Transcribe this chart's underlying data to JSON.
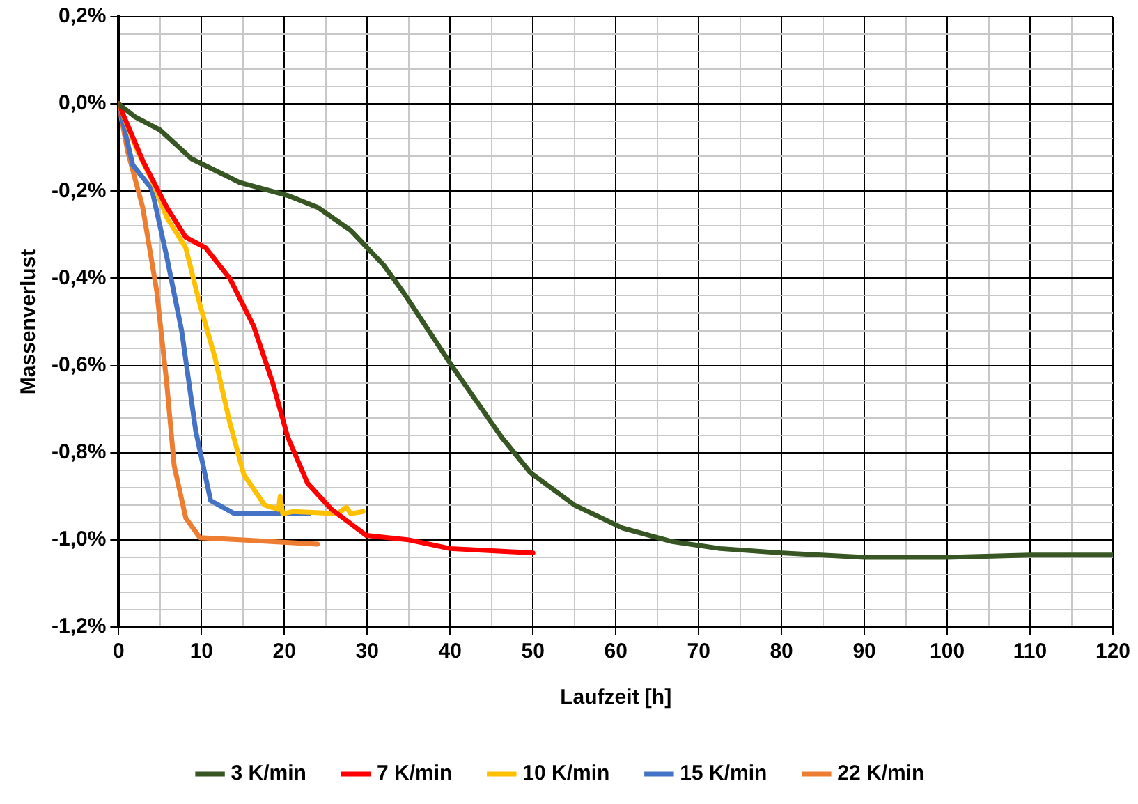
{
  "chart_data": {
    "type": "line",
    "xlabel": "Laufzeit [h]",
    "ylabel": "Massenverlust",
    "xlim": [
      0,
      120
    ],
    "ylim": [
      -1.2,
      0.2
    ],
    "xticks": [
      0,
      {
        "value": 5,
        "label": null
      },
      10,
      {
        "value": 15,
        "label": null
      },
      20,
      {
        "value": 25,
        "label": null
      },
      30,
      {
        "value": 35,
        "label": null
      },
      40,
      {
        "value": 45,
        "label": null
      },
      50,
      {
        "value": 55,
        "label": null
      },
      60,
      {
        "value": 65,
        "label": null
      },
      70,
      {
        "value": 75,
        "label": null
      },
      80,
      {
        "value": 85,
        "label": null
      },
      90,
      {
        "value": 95,
        "label": null
      },
      100,
      {
        "value": 105,
        "label": null
      },
      110,
      {
        "value": 115,
        "label": null
      },
      120
    ],
    "yticks": [
      {
        "value": 0.2,
        "label": "0,2%"
      },
      {
        "value": 0.16,
        "label": null
      },
      {
        "value": 0.12,
        "label": null
      },
      {
        "value": 0.08,
        "label": null
      },
      {
        "value": 0.04,
        "label": null
      },
      {
        "value": 0,
        "label": "0,0%"
      },
      {
        "value": -0.04,
        "label": null
      },
      {
        "value": -0.08,
        "label": null
      },
      {
        "value": -0.12,
        "label": null
      },
      {
        "value": -0.16,
        "label": null
      },
      {
        "value": -0.2,
        "label": "-0,2%"
      },
      {
        "value": -0.24,
        "label": null
      },
      {
        "value": -0.28,
        "label": null
      },
      {
        "value": -0.32,
        "label": null
      },
      {
        "value": -0.36,
        "label": null
      },
      {
        "value": -0.4,
        "label": "-0,4%"
      },
      {
        "value": -0.44,
        "label": null
      },
      {
        "value": -0.48,
        "label": null
      },
      {
        "value": -0.52,
        "label": null
      },
      {
        "value": -0.56,
        "label": null
      },
      {
        "value": -0.6,
        "label": "-0,6%"
      },
      {
        "value": -0.64,
        "label": null
      },
      {
        "value": -0.68,
        "label": null
      },
      {
        "value": -0.72,
        "label": null
      },
      {
        "value": -0.76,
        "label": null
      },
      {
        "value": -0.8,
        "label": "-0,8%"
      },
      {
        "value": -0.84,
        "label": null
      },
      {
        "value": -0.88,
        "label": null
      },
      {
        "value": -0.92,
        "label": null
      },
      {
        "value": -0.96,
        "label": null
      },
      {
        "value": -1.0,
        "label": "-1,0%"
      },
      {
        "value": -1.04,
        "label": null
      },
      {
        "value": -1.08,
        "label": null
      },
      {
        "value": -1.12,
        "label": null
      },
      {
        "value": -1.16,
        "label": null
      },
      {
        "value": -1.2,
        "label": "-1,2%"
      }
    ],
    "grid": true,
    "legend": "bottom",
    "marker": "none",
    "line_style": "solid",
    "series": [
      {
        "name": "3 K/min",
        "color": "#375623",
        "x": [
          0,
          2,
          5,
          8.8,
          14.6,
          20.4,
          24,
          28,
          32,
          34.5,
          40.4,
          46.2,
          49.7,
          55,
          60.8,
          66.8,
          72.6,
          80,
          90,
          100,
          110,
          120
        ],
        "values": [
          0,
          -0.03,
          -0.06,
          -0.126,
          -0.18,
          -0.21,
          -0.237,
          -0.29,
          -0.37,
          -0.436,
          -0.606,
          -0.764,
          -0.846,
          -0.92,
          -0.973,
          -1.004,
          -1.02,
          -1.03,
          -1.04,
          -1.04,
          -1.035,
          -1.035
        ]
      },
      {
        "name": "7 K/min",
        "color": "#ff0000",
        "x": [
          0,
          2.9,
          5.8,
          8.1,
          10.5,
          13.4,
          16.3,
          18.6,
          20.4,
          22.8,
          25.7,
          29.9,
          35,
          40,
          45,
          50
        ],
        "values": [
          0,
          -0.13,
          -0.237,
          -0.306,
          -0.33,
          -0.4,
          -0.51,
          -0.64,
          -0.764,
          -0.87,
          -0.93,
          -0.99,
          -1.0,
          -1.02,
          -1.025,
          -1.03
        ]
      },
      {
        "name": "10 K/min",
        "color": "#ffc000",
        "x": [
          0,
          2.3,
          4,
          5.8,
          8.1,
          9.8,
          11.6,
          13.4,
          15.1,
          17.6,
          19.3,
          19.5,
          19.8,
          21.1,
          26.4,
          27.5,
          28,
          29.5
        ],
        "values": [
          0,
          -0.11,
          -0.174,
          -0.26,
          -0.33,
          -0.46,
          -0.58,
          -0.73,
          -0.85,
          -0.92,
          -0.93,
          -0.9,
          -0.94,
          -0.935,
          -0.94,
          -0.925,
          -0.94,
          -0.935
        ]
      },
      {
        "name": "15 K/min",
        "color": "#4472c4",
        "x": [
          0,
          1.7,
          4,
          5.8,
          7.6,
          9.3,
          11.1,
          14,
          22.8,
          23
        ],
        "values": [
          0,
          -0.14,
          -0.195,
          -0.35,
          -0.52,
          -0.75,
          -0.91,
          -0.94,
          -0.94,
          -0.94
        ]
      },
      {
        "name": "22 K/min",
        "color": "#ed7d31",
        "x": [
          0,
          1.1,
          2.9,
          4.6,
          5.8,
          6.7,
          8.1,
          9.8,
          14.6,
          24
        ],
        "values": [
          0,
          -0.11,
          -0.237,
          -0.43,
          -0.64,
          -0.83,
          -0.95,
          -0.995,
          -1.0,
          -1.01
        ]
      }
    ]
  }
}
